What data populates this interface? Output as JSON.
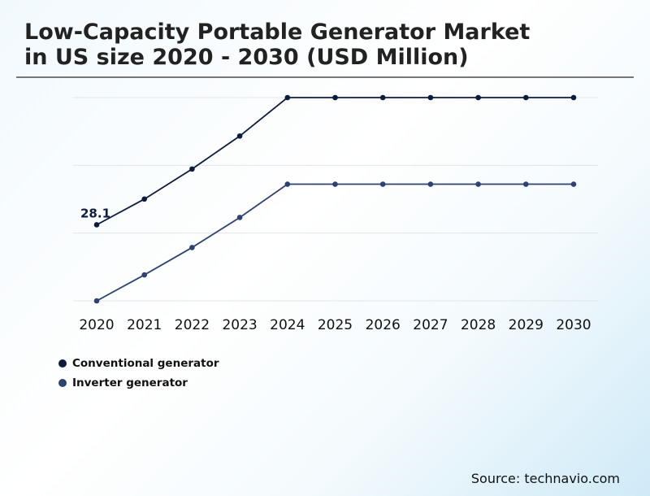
{
  "title_line1": "Low-Capacity Portable Generator Market",
  "title_line2": "in US size 2020 - 2030 (USD Million)",
  "source": "Source: technavio.com",
  "chart_data": {
    "type": "line",
    "title": "Low-Capacity Portable Generator Market in US size 2020 - 2030 (USD Million)",
    "x": [
      "2020",
      "2021",
      "2022",
      "2023",
      "2024",
      "2025",
      "2026",
      "2027",
      "2028",
      "2029",
      "2030"
    ],
    "ylim": [
      0,
      75.1
    ],
    "grid": true,
    "legend_position": "bottom-left",
    "series": [
      {
        "name": "Conventional generator",
        "color": "#0d1b3e",
        "values": [
          28.1,
          37.6,
          48.7,
          60.9,
          75.1,
          75.1,
          75.1,
          75.1,
          75.1,
          75.1,
          75.1
        ]
      },
      {
        "name": "Inverter generator",
        "color": "#2e4272",
        "values": [
          0,
          9.6,
          19.7,
          30.8,
          43.1,
          43.1,
          43.1,
          43.1,
          43.1,
          43.1,
          43.1
        ]
      }
    ],
    "annotations": [
      {
        "series": 0,
        "x": "2020",
        "text": "28.1"
      }
    ]
  }
}
